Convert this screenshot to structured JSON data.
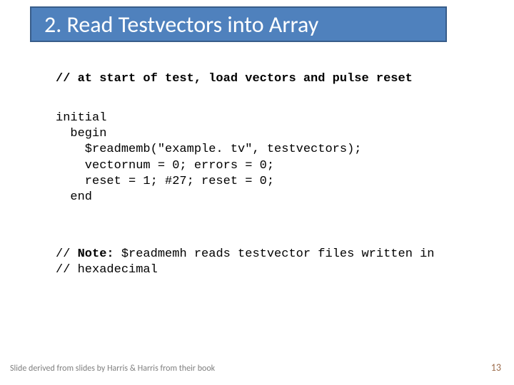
{
  "title": {
    "text": "2. Read Testvectors into Array",
    "bg_color": "#4f81bd",
    "border_color": "#385d8a",
    "text_color": "#ffffff",
    "font_size": 32
  },
  "comment_line": "// at start of test, load vectors and pulse reset",
  "code": {
    "l1": "initial",
    "l2": "  begin",
    "l3": "    $readmemb(\"example. tv\", testvectors);",
    "l4": "    vectornum = 0; errors = 0;",
    "l5": "    reset = 1; #27; reset = 0;",
    "l6": "  end"
  },
  "note": {
    "prefix1": "// ",
    "keyword": "Note:",
    "rest1": " $readmemh reads testvector files written in",
    "line2": "// hexadecimal"
  },
  "footer": {
    "attribution": "Slide derived from slides by Harris & Harris from their book",
    "page_number": "13"
  },
  "styling": {
    "background_color": "#ffffff",
    "code_font": "Courier New",
    "code_font_size": 17,
    "footer_left_color": "#7f7f7f",
    "footer_right_color": "#9b6b4a",
    "footer_left_size": 12,
    "footer_right_size": 14
  }
}
